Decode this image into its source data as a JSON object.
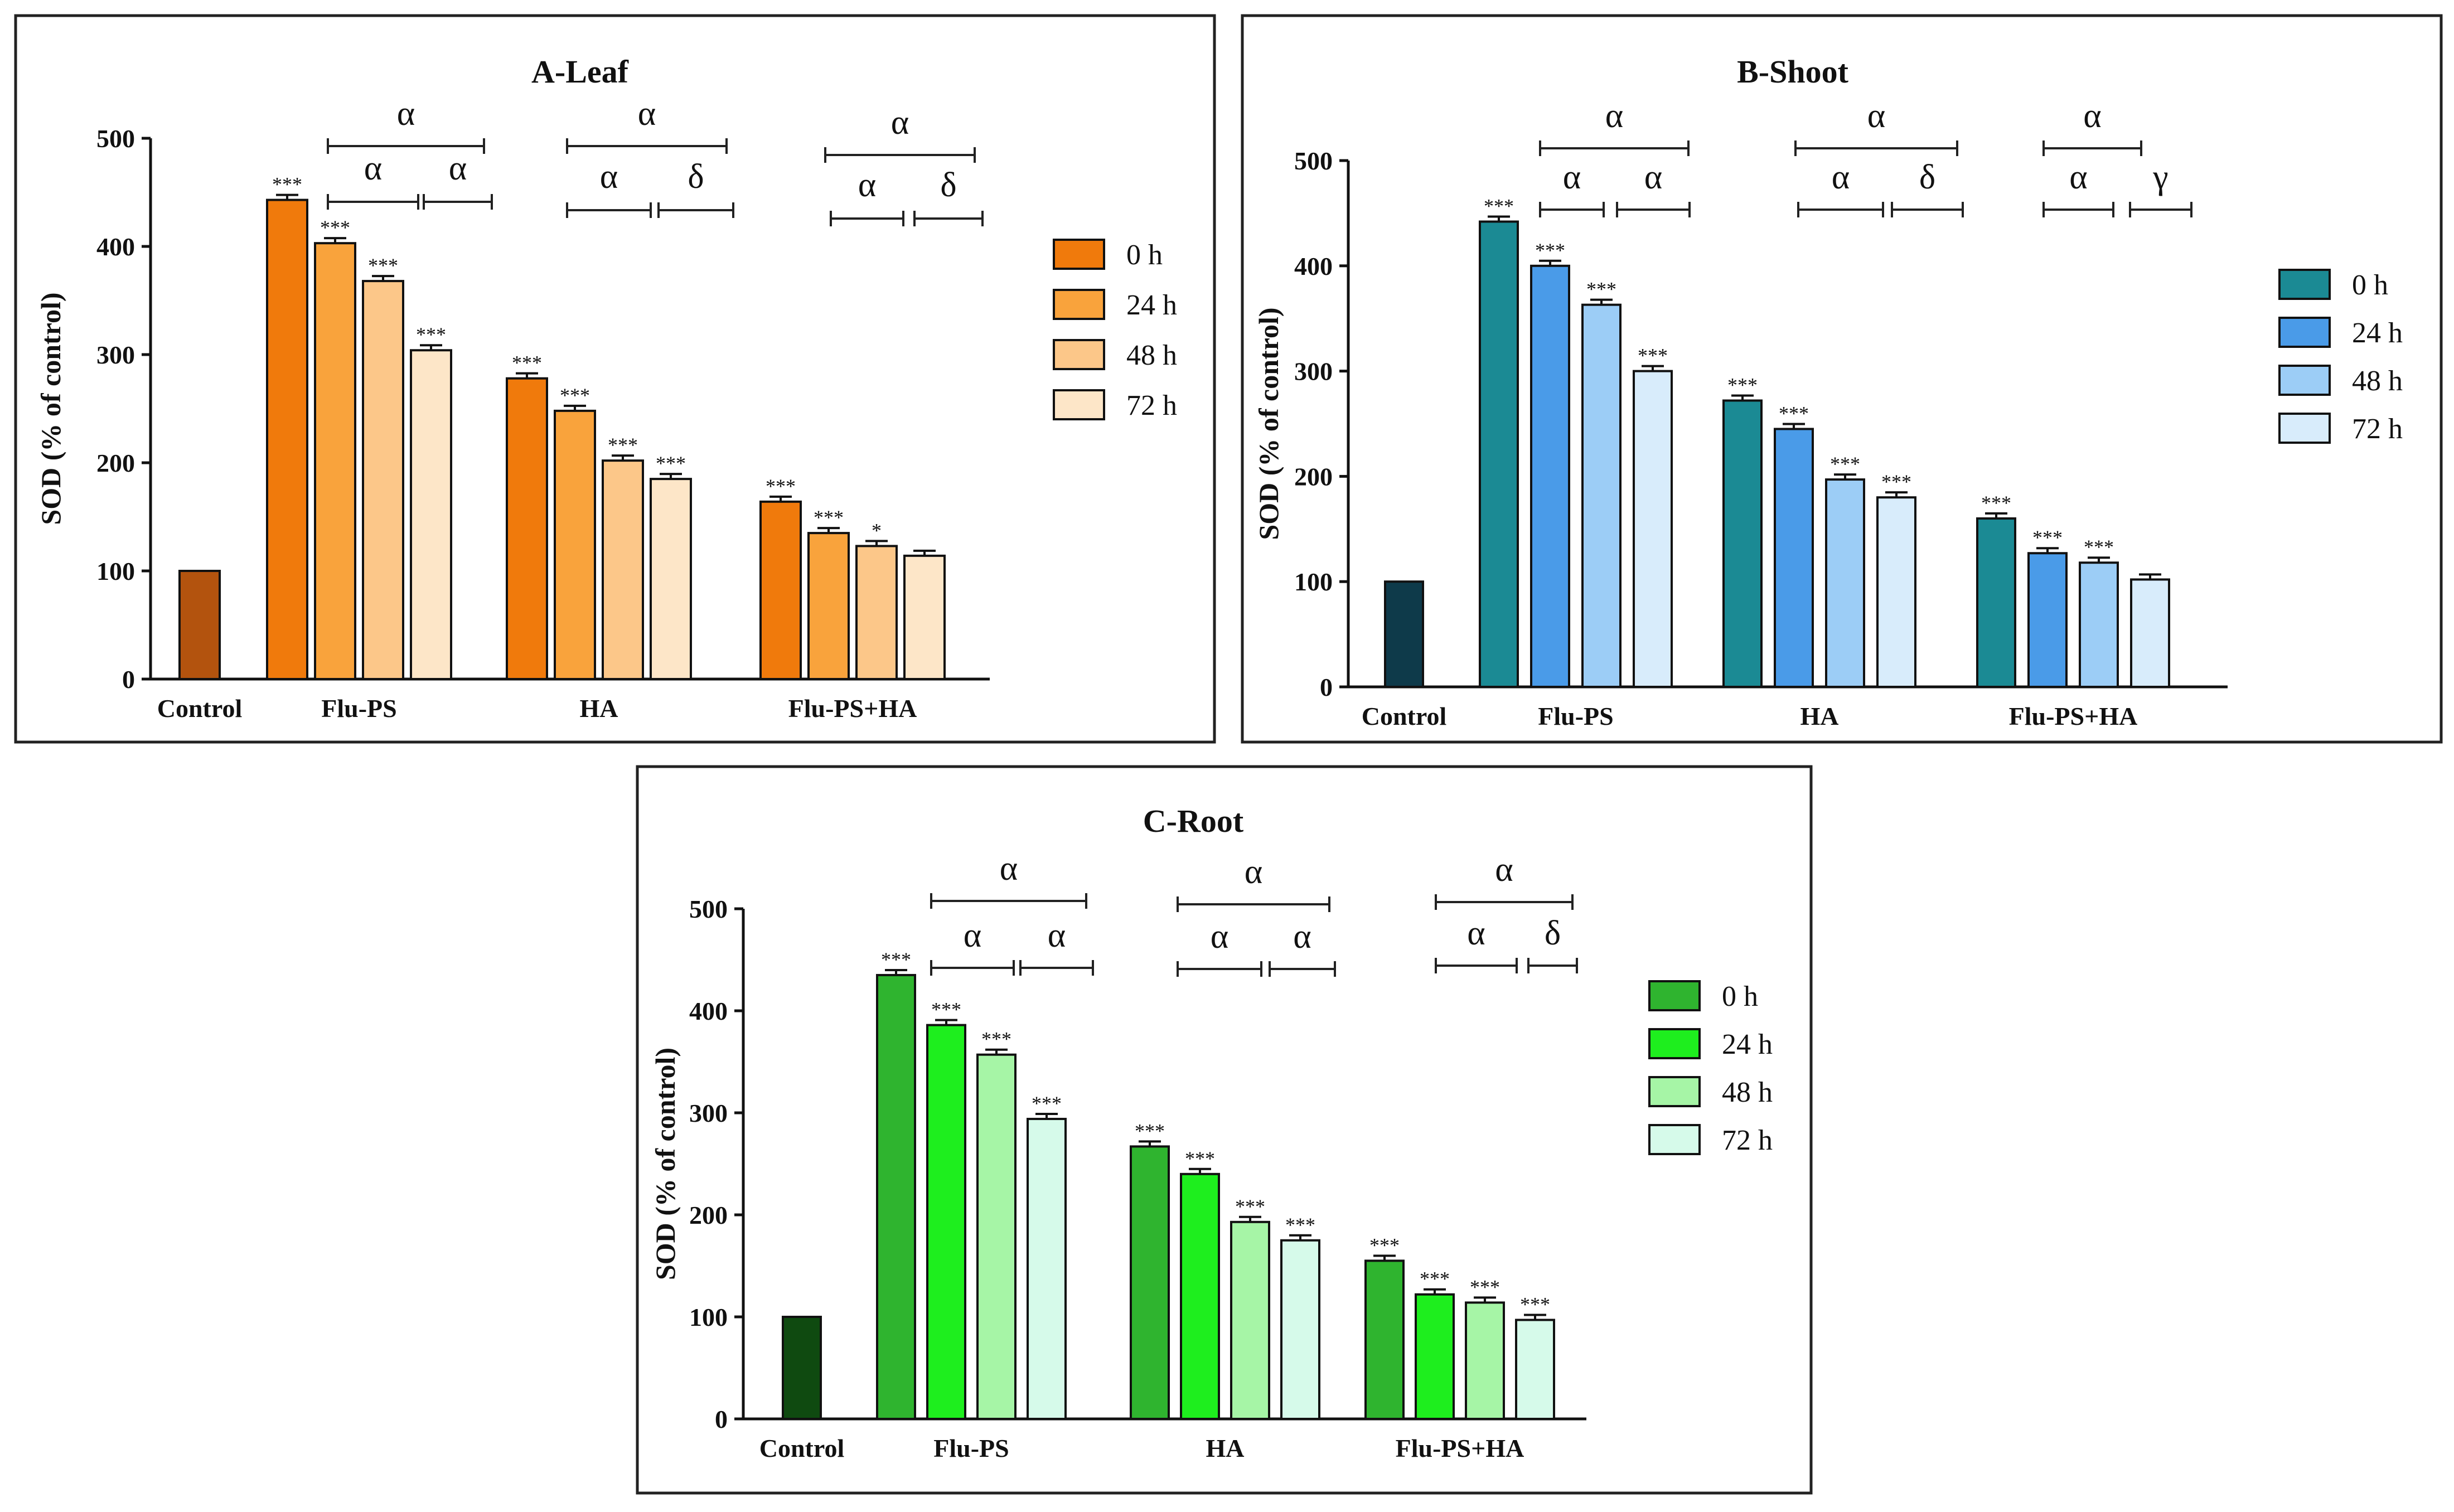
{
  "chart_data": [
    {
      "type": "bar",
      "title": "A-Leaf",
      "ylabel": "SOD (% of control)",
      "ylim": [
        0,
        500
      ],
      "yticks": [
        "0",
        "100",
        "200",
        "300",
        "400",
        "500"
      ],
      "control": {
        "label": "Control",
        "value": 100,
        "color": "#b3530e"
      },
      "groups": [
        "Flu-PS",
        "HA",
        "Flu-PS+HA"
      ],
      "series": [
        {
          "name": "0 h",
          "color": "#f07a0c",
          "values": [
            443,
            278,
            164
          ],
          "sig": [
            "***",
            "***",
            "***"
          ]
        },
        {
          "name": "24 h",
          "color": "#f9a33c",
          "values": [
            403,
            248,
            135
          ],
          "sig": [
            "***",
            "***",
            "***"
          ]
        },
        {
          "name": "48 h",
          "color": "#fcc789",
          "values": [
            368,
            202,
            123
          ],
          "sig": [
            "***",
            "***",
            "*"
          ]
        },
        {
          "name": "72 h",
          "color": "#fde6c8",
          "values": [
            304,
            185,
            114
          ],
          "sig": [
            "***",
            "***",
            ""
          ]
        }
      ],
      "brackets": [
        [
          {
            "label": "α"
          },
          {
            "label": "α"
          },
          {
            "label": "α"
          }
        ],
        [
          {
            "label": "α"
          },
          {
            "label": "α"
          },
          {
            "label": "δ"
          }
        ],
        [
          {
            "label": "α"
          },
          {
            "label": "α"
          },
          {
            "label": "δ"
          }
        ]
      ]
    },
    {
      "type": "bar",
      "title": "B-Shoot",
      "ylabel": "SOD (% of control)",
      "ylim": [
        0,
        500
      ],
      "yticks": [
        "0",
        "100",
        "200",
        "300",
        "400",
        "500"
      ],
      "control": {
        "label": "Control",
        "value": 100,
        "color": "#0e3a4a"
      },
      "groups": [
        "Flu-PS",
        "HA",
        "Flu-PS+HA"
      ],
      "series": [
        {
          "name": "0 h",
          "color": "#1b8a94",
          "values": [
            442,
            272,
            160
          ],
          "sig": [
            "***",
            "***",
            "***"
          ]
        },
        {
          "name": "24 h",
          "color": "#4a9be8",
          "values": [
            400,
            245,
            127
          ],
          "sig": [
            "***",
            "***",
            "***"
          ]
        },
        {
          "name": "48 h",
          "color": "#9ccdf6",
          "values": [
            363,
            197,
            118
          ],
          "sig": [
            "***",
            "***",
            "***"
          ]
        },
        {
          "name": "72 h",
          "color": "#d8ecfb",
          "values": [
            300,
            180,
            102
          ],
          "sig": [
            "***",
            "***",
            ""
          ]
        }
      ],
      "brackets": [
        [
          {
            "label": "α"
          },
          {
            "label": "α"
          },
          {
            "label": "α"
          }
        ],
        [
          {
            "label": "α"
          },
          {
            "label": "α"
          },
          {
            "label": "δ"
          }
        ],
        [
          {
            "label": "α"
          },
          {
            "label": "α"
          },
          {
            "label": "γ"
          }
        ]
      ]
    },
    {
      "type": "bar",
      "title": "C-Root",
      "ylabel": "SOD (% of control)",
      "ylim": [
        0,
        500
      ],
      "yticks": [
        "0",
        "100",
        "200",
        "300",
        "400",
        "500"
      ],
      "control": {
        "label": "Control",
        "value": 100,
        "color": "#0f4a10"
      },
      "groups": [
        "Flu-PS",
        "HA",
        "Flu-PS+HA"
      ],
      "series": [
        {
          "name": "0 h",
          "color": "#2fb42f",
          "values": [
            435,
            267,
            155
          ],
          "sig": [
            "***",
            "***",
            "***"
          ]
        },
        {
          "name": "24 h",
          "color": "#1eee1e",
          "values": [
            386,
            240,
            122
          ],
          "sig": [
            "***",
            "***",
            "***"
          ]
        },
        {
          "name": "48 h",
          "color": "#a6f5a6",
          "values": [
            357,
            193,
            114
          ],
          "sig": [
            "***",
            "***",
            "***"
          ]
        },
        {
          "name": "72 h",
          "color": "#d6faea",
          "values": [
            294,
            175,
            97
          ],
          "sig": [
            "***",
            "***",
            "***"
          ]
        }
      ],
      "brackets": [
        [
          {
            "label": "α"
          },
          {
            "label": "α"
          },
          {
            "label": "α"
          }
        ],
        [
          {
            "label": "α"
          },
          {
            "label": "α"
          },
          {
            "label": "α"
          }
        ],
        [
          {
            "label": "α"
          },
          {
            "label": "α"
          },
          {
            "label": "δ"
          }
        ]
      ]
    }
  ]
}
